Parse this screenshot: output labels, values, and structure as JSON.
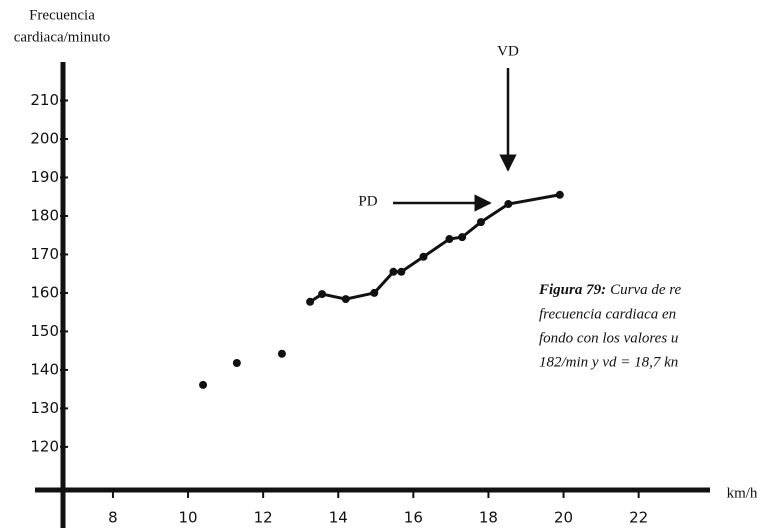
{
  "chart_data": {
    "type": "scatter",
    "y_label": [
      "Frecuencia",
      "cardiaca/minuto"
    ],
    "x_label": "km/h",
    "xlim": [
      6.67,
      23.9
    ],
    "ylim": [
      108.8,
      220
    ],
    "xticks": [
      8,
      10,
      12,
      14,
      16,
      18,
      20,
      22
    ],
    "yticks": [
      120,
      130,
      140,
      150,
      160,
      170,
      180,
      190,
      200,
      210
    ],
    "series": [
      {
        "color": "#111111",
        "x": [
          10.4,
          11.3,
          12.5,
          13.25,
          13.57,
          14.2,
          14.96,
          15.47,
          15.68,
          16.27,
          16.96,
          17.3,
          17.8,
          18.53,
          19.9
        ],
        "values": [
          136.1,
          141.8,
          144.2,
          157.7,
          159.7,
          158.4,
          160,
          165.5,
          165.5,
          169.4,
          174,
          174.5,
          178.4,
          183.1,
          185.5
        ]
      }
    ],
    "annotations": [
      "VD",
      "PD"
    ],
    "caption": {
      "title": "Figura 79:",
      "lines": [
        "Curva de re",
        "frecuencia cardiaca en",
        "fondo con los valores u",
        "182/min y vd = 18,7 kn"
      ]
    }
  }
}
